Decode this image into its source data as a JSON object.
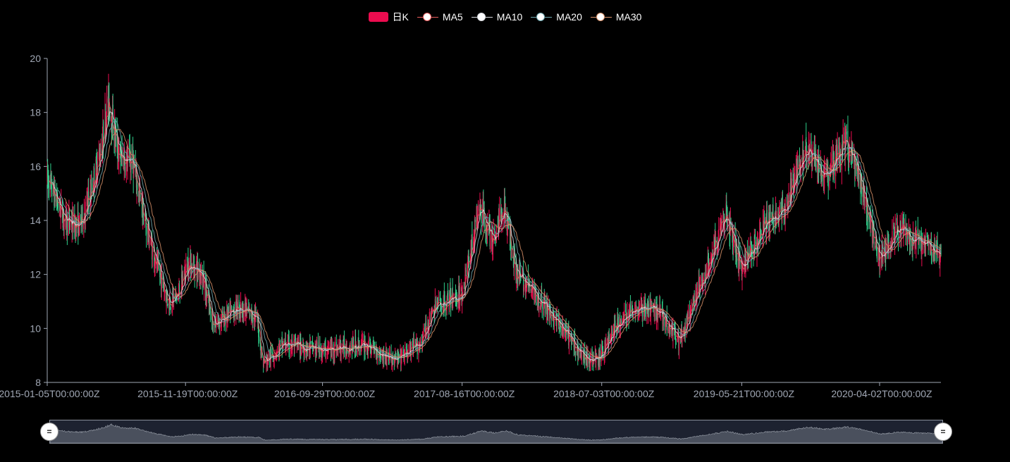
{
  "legend": {
    "kline": "日K",
    "ma5": "MA5",
    "ma10": "MA10",
    "ma20": "MA20",
    "ma30": "MA30"
  },
  "colors": {
    "up": "#ec0c4f",
    "down": "#2fcf8b",
    "ma5": "#e85b5b",
    "ma10": "#d9dbe0",
    "ma20": "#6fa8b0",
    "ma30": "#d9926a",
    "axis": "#a0a7b4",
    "slider_fill": "#4a505d"
  },
  "chart_data": {
    "type": "candlestick",
    "xaxis_start": "2015-01-05T00:00:00Z",
    "xaxis_end": "2020-08-21T00:00:00Z",
    "x_tick_labels": [
      "2015-01-05T00:00:00Z",
      "2015-11-19T00:00:00Z",
      "2016-09-29T00:00:00Z",
      "2017-08-16T00:00:00Z",
      "2018-07-03T00:00:00Z",
      "2019-05-21T00:00:00Z",
      "2020-04-02T00:00:00Z"
    ],
    "y_ticks": [
      8,
      10,
      12,
      14,
      16,
      18,
      20
    ],
    "ylim": [
      8,
      20
    ],
    "series": [
      {
        "name": "日K"
      },
      {
        "name": "MA5",
        "window": 5
      },
      {
        "name": "MA10",
        "window": 10
      },
      {
        "name": "MA20",
        "window": 20
      },
      {
        "name": "MA30",
        "window": 30
      }
    ],
    "price_path": [
      [
        "2015-01-05",
        15.6
      ],
      [
        "2015-02-15",
        14.0
      ],
      [
        "2015-03-20",
        13.8
      ],
      [
        "2015-04-15",
        15.0
      ],
      [
        "2015-05-10",
        16.8
      ],
      [
        "2015-05-25",
        18.5
      ],
      [
        "2015-06-20",
        16.3
      ],
      [
        "2015-07-20",
        16.2
      ],
      [
        "2015-08-10",
        14.5
      ],
      [
        "2015-09-10",
        12.5
      ],
      [
        "2015-10-10",
        11.0
      ],
      [
        "2015-11-01",
        11.2
      ],
      [
        "2015-11-25",
        12.4
      ],
      [
        "2015-12-25",
        12.1
      ],
      [
        "2016-01-20",
        10.2
      ],
      [
        "2016-02-20",
        10.4
      ],
      [
        "2016-03-20",
        10.8
      ],
      [
        "2016-05-01",
        10.4
      ],
      [
        "2016-05-15",
        8.7
      ],
      [
        "2016-07-01",
        9.4
      ],
      [
        "2016-10-01",
        9.2
      ],
      [
        "2017-01-01",
        9.4
      ],
      [
        "2017-03-15",
        8.8
      ],
      [
        "2017-05-10",
        9.4
      ],
      [
        "2017-06-15",
        10.8
      ],
      [
        "2017-08-16",
        11.3
      ],
      [
        "2017-09-25",
        14.5
      ],
      [
        "2017-10-25",
        13.2
      ],
      [
        "2017-11-20",
        14.6
      ],
      [
        "2017-12-20",
        12.0
      ],
      [
        "2018-02-15",
        11.0
      ],
      [
        "2018-04-01",
        10.0
      ],
      [
        "2018-05-20",
        9.0
      ],
      [
        "2018-06-25",
        8.8
      ],
      [
        "2018-08-01",
        10.0
      ],
      [
        "2018-09-20",
        10.8
      ],
      [
        "2018-11-15",
        10.6
      ],
      [
        "2018-12-30",
        9.5
      ],
      [
        "2019-02-20",
        11.8
      ],
      [
        "2019-04-15",
        14.2
      ],
      [
        "2019-05-21",
        12.2
      ],
      [
        "2019-07-10",
        13.8
      ],
      [
        "2019-09-01",
        14.5
      ],
      [
        "2019-10-15",
        16.8
      ],
      [
        "2019-12-01",
        15.5
      ],
      [
        "2020-01-15",
        16.9
      ],
      [
        "2020-02-20",
        15.2
      ],
      [
        "2020-04-02",
        12.6
      ],
      [
        "2020-05-15",
        13.7
      ],
      [
        "2020-07-01",
        13.2
      ],
      [
        "2020-08-21",
        12.8
      ]
    ]
  }
}
